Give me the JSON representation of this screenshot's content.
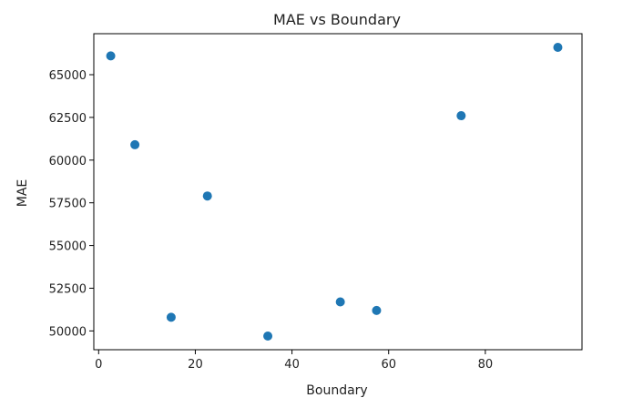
{
  "chart_data": {
    "type": "scatter",
    "title": "MAE vs Boundary",
    "xlabel": "Boundary",
    "ylabel": "MAE",
    "x": [
      2.5,
      7.5,
      15,
      22.5,
      35,
      50,
      57.5,
      75,
      95
    ],
    "y": [
      66100,
      60900,
      50800,
      57900,
      49700,
      51700,
      51200,
      62600,
      66600
    ],
    "xlim": [
      -1,
      100
    ],
    "ylim": [
      48900,
      67400
    ],
    "x_ticks": [
      0,
      20,
      40,
      60,
      80
    ],
    "y_ticks": [
      50000,
      52500,
      55000,
      57500,
      60000,
      62500,
      65000
    ],
    "x_tick_labels": [
      "0",
      "20",
      "40",
      "60",
      "80"
    ],
    "y_tick_labels": [
      "50000",
      "52500",
      "55000",
      "57500",
      "60000",
      "62500",
      "65000"
    ],
    "grid": false,
    "marker_color": "#1f77b4"
  }
}
